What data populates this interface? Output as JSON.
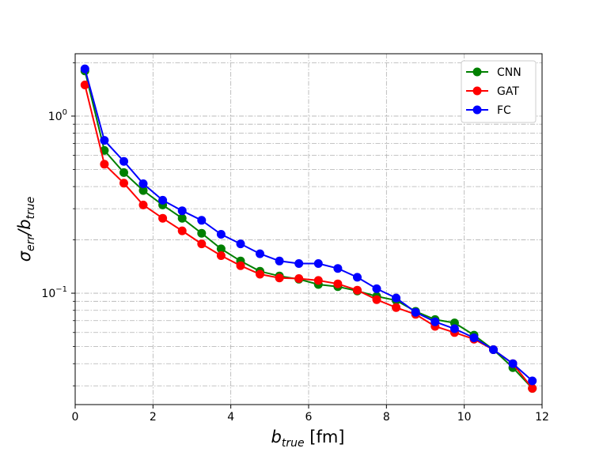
{
  "chart_data": {
    "type": "line",
    "title": "",
    "xlabel": {
      "main": "b",
      "sub": "true",
      "unit": " [fm]"
    },
    "ylabel": {
      "sigma": "σ",
      "sigma_sub": "err",
      "slash_b": "/b",
      "b_sub": "true"
    },
    "x_ticks": [
      "0",
      "2",
      "4",
      "6",
      "8",
      "10",
      "12"
    ],
    "y_ticks": [
      {
        "value": 1.0,
        "base": "10",
        "exp": "0"
      },
      {
        "value": 0.1,
        "base": "10",
        "exp": "−1"
      }
    ],
    "xlim": [
      0,
      12
    ],
    "ylim": [
      0.0235,
      2.25
    ],
    "yscale": "log",
    "grid": "on, dash-dot, major and minor on y",
    "legend_position": "top-right",
    "x": [
      0.25,
      0.75,
      1.25,
      1.75,
      2.25,
      2.75,
      3.25,
      3.75,
      4.25,
      4.75,
      5.25,
      5.75,
      6.25,
      6.75,
      7.25,
      7.75,
      8.25,
      8.75,
      9.25,
      9.75,
      10.25,
      10.75,
      11.25,
      11.75
    ],
    "series": [
      {
        "name": "CNN",
        "color": "#008000",
        "values": [
          1.8,
          0.64,
          0.48,
          0.38,
          0.315,
          0.265,
          0.218,
          0.178,
          0.152,
          0.133,
          0.125,
          0.12,
          0.112,
          0.109,
          0.103,
          0.096,
          0.091,
          0.079,
          0.071,
          0.068,
          0.058,
          0.048,
          0.038,
          0.029
        ]
      },
      {
        "name": "GAT",
        "color": "#ff0000",
        "values": [
          1.5,
          0.535,
          0.418,
          0.315,
          0.265,
          0.225,
          0.19,
          0.163,
          0.143,
          0.128,
          0.122,
          0.121,
          0.118,
          0.113,
          0.104,
          0.092,
          0.083,
          0.076,
          0.065,
          0.06,
          0.055,
          0.048,
          0.04,
          0.029
        ]
      },
      {
        "name": "FC",
        "color": "#0000ff",
        "values": [
          1.85,
          0.73,
          0.555,
          0.415,
          0.335,
          0.292,
          0.258,
          0.215,
          0.19,
          0.167,
          0.152,
          0.147,
          0.147,
          0.138,
          0.123,
          0.106,
          0.094,
          0.078,
          0.069,
          0.063,
          0.056,
          0.048,
          0.04,
          0.032
        ]
      }
    ]
  }
}
